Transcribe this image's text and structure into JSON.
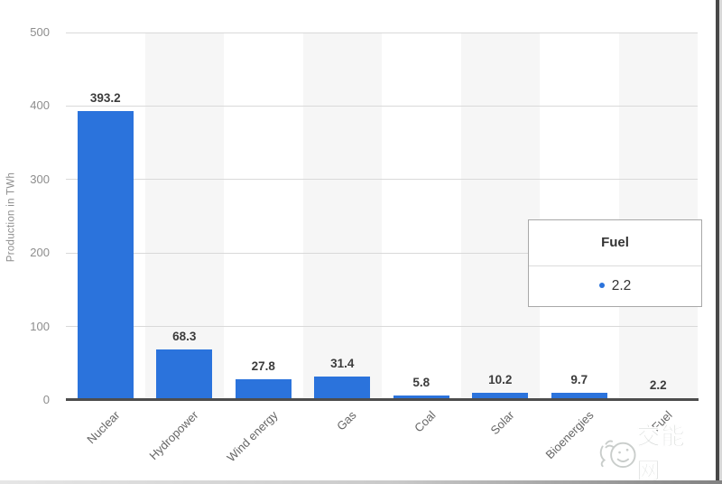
{
  "chart_data": {
    "type": "bar",
    "categories": [
      "Nuclear",
      "Hydropower",
      "Wind energy",
      "Gas",
      "Coal",
      "Solar",
      "Bioenergies",
      "Fuel"
    ],
    "values": [
      393.2,
      68.3,
      27.8,
      31.4,
      5.8,
      10.2,
      9.7,
      2.2
    ],
    "value_labels": [
      "393.2",
      "68.3",
      "27.8",
      "31.4",
      "5.8",
      "10.2",
      "9.7",
      "2.2"
    ],
    "title": "",
    "xlabel": "",
    "ylabel": "Production in TWh",
    "ylim": [
      0,
      500
    ],
    "yticks": [
      0,
      100,
      200,
      300,
      400,
      500
    ],
    "grid": "horizontal",
    "legend_position": "none",
    "bar_color": "#2b73dc",
    "band_color": "#f6f6f6",
    "gridline_color": "#d9d9d9",
    "axis_line_color": "#4d4d4d"
  },
  "tooltip": {
    "title": "Fuel",
    "value_label": "2.2",
    "dot_color": "#2b73dc"
  },
  "watermark": {
    "text": "交能网",
    "logo": "bird-face-logo",
    "color": "#c9cdcb"
  }
}
